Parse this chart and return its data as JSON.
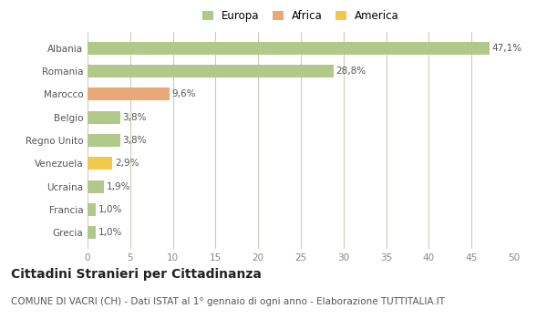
{
  "categories": [
    "Grecia",
    "Francia",
    "Ucraina",
    "Venezuela",
    "Regno Unito",
    "Belgio",
    "Marocco",
    "Romania",
    "Albania"
  ],
  "values": [
    1.0,
    1.0,
    1.9,
    2.9,
    3.8,
    3.8,
    9.6,
    28.8,
    47.1
  ],
  "labels": [
    "1,0%",
    "1,0%",
    "1,9%",
    "2,9%",
    "3,8%",
    "3,8%",
    "9,6%",
    "28,8%",
    "47,1%"
  ],
  "bar_colors": [
    "#b0c888",
    "#b0c888",
    "#b0c888",
    "#f0c84a",
    "#b0c888",
    "#b0c888",
    "#e8a878",
    "#b0c888",
    "#b0c888"
  ],
  "legend_labels": [
    "Europa",
    "Africa",
    "America"
  ],
  "legend_colors": [
    "#b0c888",
    "#e8a878",
    "#f0c84a"
  ],
  "xlim": [
    0,
    50
  ],
  "xticks": [
    0,
    5,
    10,
    15,
    20,
    25,
    30,
    35,
    40,
    45,
    50
  ],
  "title": "Cittadini Stranieri per Cittadinanza",
  "subtitle": "COMUNE DI VACRI (CH) - Dati ISTAT al 1° gennaio di ogni anno - Elaborazione TUTTITALIA.IT",
  "bg_color": "#ffffff",
  "plot_bg_color": "#ffffff",
  "grid_color": "#ccccbb",
  "bar_height": 0.55,
  "title_fontsize": 10,
  "subtitle_fontsize": 7.5,
  "label_fontsize": 7.5,
  "tick_fontsize": 7.5,
  "legend_fontsize": 8.5
}
